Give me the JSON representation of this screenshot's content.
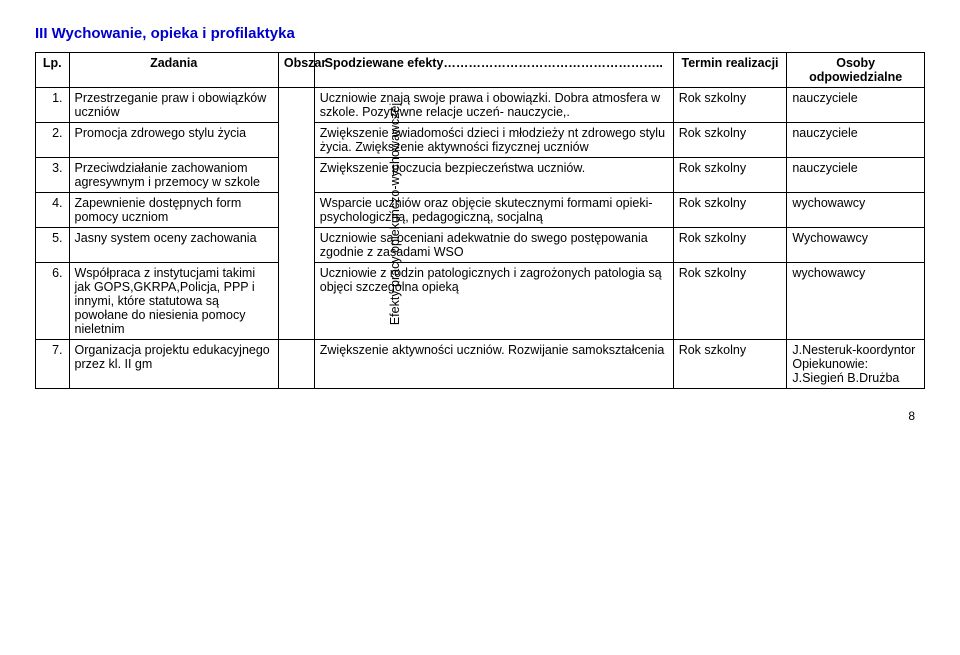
{
  "heading": "III Wychowanie, opieka i profilaktyka",
  "headers": {
    "lp": "Lp.",
    "zadania": "Zadania",
    "obszar": "Obszar",
    "efekty": "Spodziewane efekty……………………………………………..",
    "termin": "Termin realizacji",
    "osoby": "Osoby odpowiedzialne"
  },
  "obszar_label": "Efekty pracy opiekuńczo-wychowawczej",
  "rows": [
    {
      "lp": "1.",
      "zadania": "Przestrzeganie praw i obowiązków uczniów",
      "efekty": "Uczniowie znają swoje prawa i obowiązki. Dobra atmosfera w szkole. Pozytywne relacje uczeń- nauczycie,.",
      "termin": "Rok szkolny",
      "osoby": "nauczyciele"
    },
    {
      "lp": "2.",
      "zadania": "Promocja zdrowego stylu życia",
      "efekty": "Zwiększenie świadomości dzieci i młodzieży nt zdrowego stylu życia. Zwiększenie aktywności fizycznej uczniów",
      "termin": "Rok szkolny",
      "osoby": "nauczyciele"
    },
    {
      "lp": "3.",
      "zadania": "Przeciwdziałanie zachowaniom agresywnym i przemocy w szkole",
      "efekty": "Zwiększenie poczucia bezpieczeństwa uczniów.",
      "termin": "Rok szkolny",
      "osoby": "nauczyciele"
    },
    {
      "lp": "4.",
      "zadania": "Zapewnienie dostępnych form pomocy uczniom",
      "efekty": "Wsparcie uczniów oraz objęcie skutecznymi formami opieki- psychologiczną, pedagogiczną, socjalną",
      "termin": "Rok szkolny",
      "osoby": "wychowawcy"
    },
    {
      "lp": "5.",
      "zadania": "Jasny system oceny zachowania",
      "efekty": "Uczniowie są oceniani adekwatnie do swego postępowania zgodnie z zasadami WSO",
      "termin": "Rok szkolny",
      "osoby": "Wychowawcy"
    },
    {
      "lp": "6.",
      "zadania": "Współpraca z instytucjami takimi jak GOPS,GKRPA,Policja, PPP i innymi, które statutowa są powołane do niesienia pomocy nieletnim",
      "efekty": "Uczniowie z rodzin patologicznych i zagrożonych patologia są objęci szczególna opieką",
      "termin": "Rok szkolny",
      "osoby": "wychowawcy"
    },
    {
      "lp": "7.",
      "zadania": "Organizacja projektu edukacyjnego przez kl. II gm",
      "efekty": "Zwiększenie aktywności uczniów. Rozwijanie samokształcenia",
      "termin": "Rok szkolny",
      "osoby": "J.Nesteruk-koordyntor Opiekunowie: J.Siegień B.Drużba"
    }
  ],
  "page_number": "8"
}
